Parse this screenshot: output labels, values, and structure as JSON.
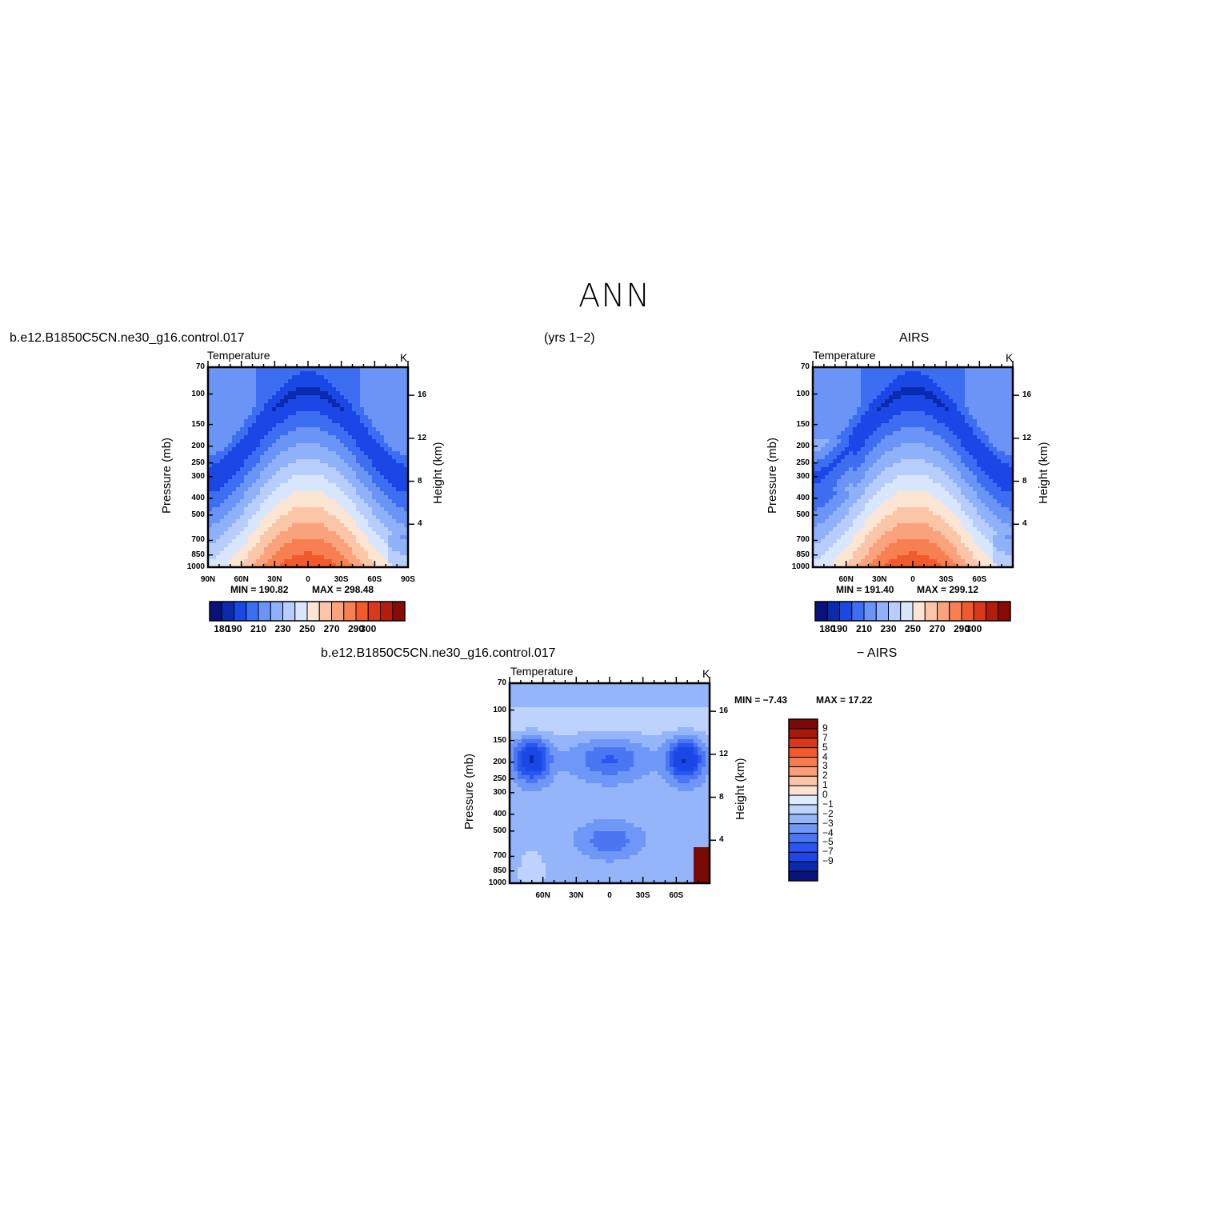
{
  "page": {
    "title": "ANN",
    "case_name": "b.e12.B1850C5CN.ne30_g16.control.017",
    "years": "(yrs 1−2)",
    "obs_name": "AIRS",
    "diff_case_name": "b.e12.B1850C5CN.ne30_g16.control.017",
    "diff_obs": "− AIRS"
  },
  "colors": {
    "abs_levels": [
      "#08127a",
      "#0a2bb0",
      "#1a47e6",
      "#3d6ef2",
      "#6a95f7",
      "#8fb1fa",
      "#b7cdfc",
      "#d9e7fe",
      "#fde5d3",
      "#fbc6a8",
      "#f9a27b",
      "#f77f52",
      "#f05a2c",
      "#d8391a",
      "#b21e0c",
      "#8a0b04"
    ],
    "diff_levels": [
      "#08127a",
      "#0a2bb0",
      "#1a47e6",
      "#2955f0",
      "#4a76f3",
      "#6f97f7",
      "#94b5fa",
      "#bdd3fd",
      "#deecff",
      "#fde2d2",
      "#fbc4a8",
      "#f9a07a",
      "#f77c50",
      "#f05a2c",
      "#d8391a",
      "#a9170a",
      "#7a0a03"
    ]
  },
  "chart_data": [
    {
      "type": "heatmap",
      "panel": "model",
      "title": "Temperature",
      "units": "K",
      "ylabel": "Pressure (mb)",
      "ylabel_right": "Height (km)",
      "pressure_ticks": [
        "70",
        "100",
        "150",
        "200",
        "250",
        "300",
        "400",
        "500",
        "700",
        "850",
        "1000"
      ],
      "height_ticks": [
        "16",
        "12",
        "8",
        "4"
      ],
      "x_ticks": [
        "90N",
        "60N",
        "30N",
        "0",
        "30S",
        "60S",
        "90S"
      ],
      "min_label": "MIN = 190.82",
      "max_label": "MAX = 298.48",
      "min": 190.82,
      "max": 298.48,
      "colorbar_labels": [
        "180",
        "190",
        "210",
        "230",
        "250",
        "270",
        "290",
        "300"
      ]
    },
    {
      "type": "heatmap",
      "panel": "obs",
      "title": "Temperature",
      "units": "K",
      "ylabel": "Pressure (mb)",
      "ylabel_right": "Height (km)",
      "pressure_ticks": [
        "70",
        "100",
        "150",
        "200",
        "250",
        "300",
        "400",
        "500",
        "700",
        "850",
        "1000"
      ],
      "height_ticks": [
        "16",
        "12",
        "8",
        "4"
      ],
      "x_ticks": [
        "60N",
        "30N",
        "0",
        "30S",
        "60S"
      ],
      "min_label": "MIN = 191.40",
      "max_label": "MAX = 299.12",
      "min": 191.4,
      "max": 299.12,
      "colorbar_labels": [
        "180",
        "190",
        "210",
        "230",
        "250",
        "270",
        "290",
        "300"
      ]
    },
    {
      "type": "heatmap",
      "panel": "difference",
      "title": "Temperature",
      "units": "K",
      "ylabel": "Pressure (mb)",
      "ylabel_right": "Height (km)",
      "pressure_ticks": [
        "70",
        "100",
        "150",
        "200",
        "250",
        "300",
        "400",
        "500",
        "700",
        "850",
        "1000"
      ],
      "height_ticks": [
        "16",
        "12",
        "8",
        "4"
      ],
      "x_ticks": [
        "60N",
        "30N",
        "0",
        "30S",
        "60S"
      ],
      "min_label": "MIN = −7.43",
      "max_label": "MAX = 17.22",
      "min": -7.43,
      "max": 17.22,
      "colorbar_labels": [
        "9",
        "7",
        "5",
        "4",
        "3",
        "2",
        "1",
        "0",
        "−1",
        "−2",
        "−3",
        "−4",
        "−5",
        "−7",
        "−9"
      ]
    }
  ]
}
